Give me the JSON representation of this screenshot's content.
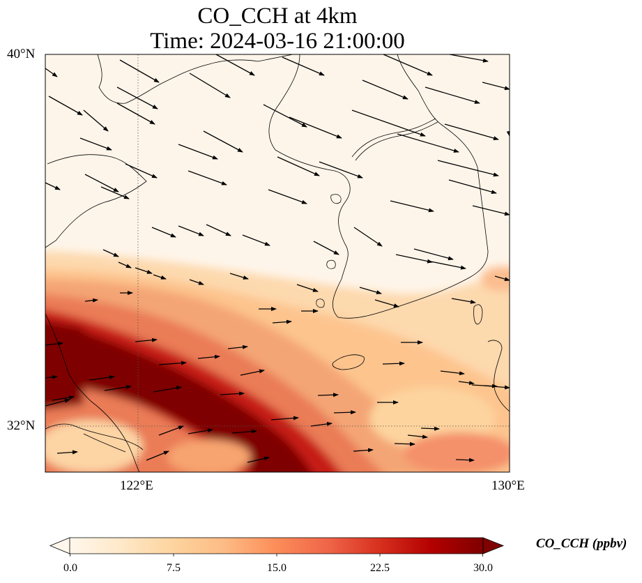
{
  "title": {
    "line1": "CO_CCH at 4km",
    "line2": "Time: 2024-03-16 21:00:00"
  },
  "axes": {
    "lat_labels": [
      "40°N",
      "32°N"
    ],
    "lon_labels": [
      "122°E",
      "130°E"
    ],
    "lon_range": [
      120,
      130
    ],
    "lat_range": [
      31,
      40
    ],
    "gridlines": "dotted at 122°E and 32°N"
  },
  "colorbar": {
    "label": "CO_CCH (ppbv)",
    "ticks": [
      "0.0",
      "7.5",
      "15.0",
      "22.5",
      "30.0"
    ],
    "range": [
      0,
      30
    ],
    "extend": "both",
    "colormap": "OrRd",
    "colors": [
      "#fff7ec",
      "#fee8c8",
      "#fdd49e",
      "#fdbb84",
      "#fc8d59",
      "#ef6548",
      "#d7301f",
      "#b30000",
      "#7f0000"
    ]
  },
  "chart_data": {
    "type": "heatmap",
    "variable": "CO_CCH",
    "units": "ppbv",
    "level": "4km",
    "time": "2024-03-16 21:00:00",
    "description_fields": {
      "low_values_region": "north of ~34.5°N, 0–3 ppbv",
      "moderate_band": "34.5°N to 33.5°N, 7–15 ppbv",
      "high_plume": "SW China coast to ~126°E 31.5°N, 25–30+ ppbv"
    },
    "wind_vectors": {
      "north_direction": "west-northwest flow (pointing east-southeast)",
      "south_direction": "westerly flow (pointing east)"
    }
  }
}
